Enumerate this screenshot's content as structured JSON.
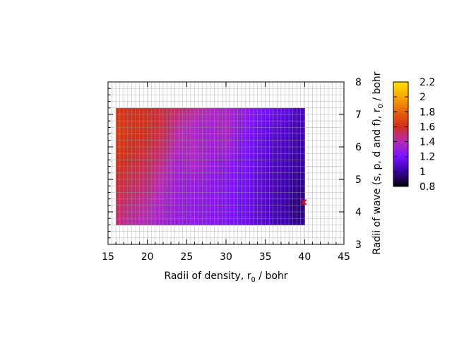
{
  "chart_data": {
    "type": "heatmap",
    "title": "",
    "xlabel": "Radii of density, r",
    "xlabel_sub": "0",
    "xlabel_suffix": " / bohr",
    "ylabel": "Radii of wave (s, p, d and f), r",
    "ylabel_sub": "0",
    "ylabel_suffix": " / bohr",
    "xlim": [
      15,
      45
    ],
    "ylim": [
      3,
      8
    ],
    "x_ticks": [
      "15",
      "20",
      "25",
      "30",
      "35",
      "40",
      "45"
    ],
    "y_ticks": [
      "3",
      "4",
      "5",
      "6",
      "7",
      "8"
    ],
    "grid": true,
    "data_extent": {
      "x": [
        16,
        40
      ],
      "y": [
        3.6,
        7.2
      ]
    },
    "colorbar": {
      "range": [
        0.8,
        2.2
      ],
      "ticks": [
        "0.8",
        "1",
        "1.2",
        "1.4",
        "1.6",
        "1.8",
        "2",
        "2.2"
      ],
      "colormap": [
        "#000000",
        "#3a00a8",
        "#7a12ff",
        "#b52ab8",
        "#d0301a",
        "#e8620a",
        "#f8a800",
        "#ffe000"
      ]
    },
    "x_samples": [
      16,
      18,
      20,
      22,
      24,
      26,
      28,
      30,
      32,
      34,
      36,
      38,
      40
    ],
    "y_samples": [
      3.6,
      4.2,
      4.8,
      5.4,
      6.0,
      6.6,
      7.2
    ],
    "values": [
      [
        1.48,
        1.42,
        1.38,
        1.33,
        1.29,
        1.27,
        1.25,
        1.22,
        1.18,
        1.12,
        1.06,
        1.0,
        0.96
      ],
      [
        1.52,
        1.47,
        1.42,
        1.35,
        1.3,
        1.28,
        1.26,
        1.23,
        1.18,
        1.12,
        1.05,
        0.98,
        0.94
      ],
      [
        1.56,
        1.52,
        1.48,
        1.38,
        1.31,
        1.29,
        1.27,
        1.24,
        1.19,
        1.13,
        1.06,
        1.0,
        0.96
      ],
      [
        1.6,
        1.56,
        1.52,
        1.44,
        1.33,
        1.36,
        1.3,
        1.26,
        1.21,
        1.14,
        1.07,
        1.02,
        0.98
      ],
      [
        1.64,
        1.6,
        1.56,
        1.5,
        1.38,
        1.38,
        1.32,
        1.34,
        1.23,
        1.16,
        1.09,
        1.04,
        1.0
      ],
      [
        1.66,
        1.62,
        1.6,
        1.54,
        1.42,
        1.36,
        1.33,
        1.38,
        1.26,
        1.18,
        1.12,
        1.06,
        1.02
      ],
      [
        1.62,
        1.6,
        1.58,
        1.55,
        1.5,
        1.46,
        1.38,
        1.36,
        1.3,
        1.22,
        1.18,
        1.12,
        1.04
      ]
    ],
    "marker": {
      "x": 39.9,
      "y": 4.3,
      "color": "#ff0000"
    }
  }
}
